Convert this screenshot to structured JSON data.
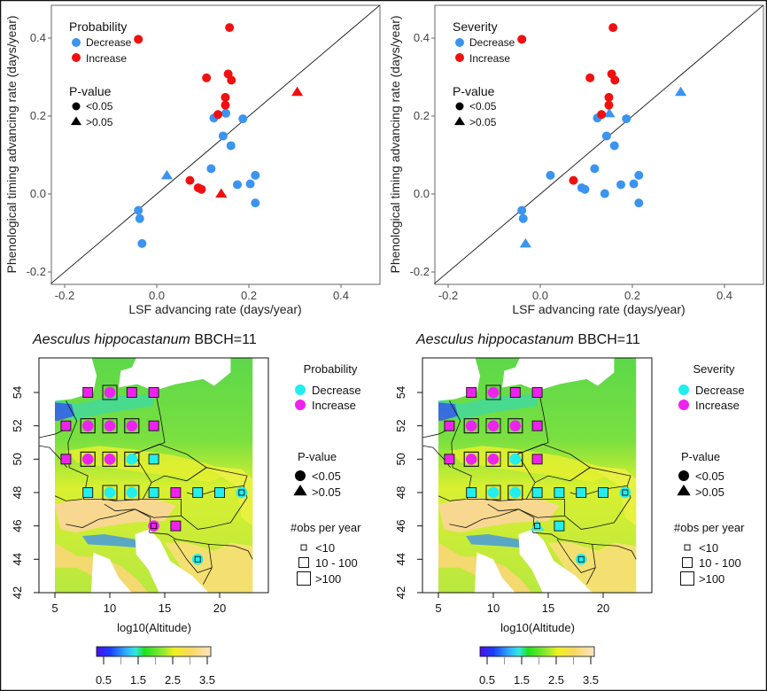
{
  "colors": {
    "decrease_scatter": "#3a94f0",
    "increase_scatter": "#f01010",
    "decrease_map": "#22eeee",
    "increase_map": "#ee22ee"
  },
  "chart_data": [
    {
      "type": "scatter",
      "panel": "top-left",
      "legend_title": "Probability",
      "legend": [
        "Decrease",
        "Increase"
      ],
      "pvalue_title": "P-value",
      "pvalue_legend": [
        "<0.05",
        ">0.05"
      ],
      "xlabel": "LSF advancing rate (days/year)",
      "ylabel": "Phenological timing advancing rate (days/year)",
      "xticks": [
        "-0.2",
        "0.0",
        "0.2",
        "0.4"
      ],
      "yticks": [
        "-0.2",
        "0.0",
        "0.2",
        "0.4"
      ],
      "xlim": [
        -0.23,
        0.485
      ],
      "ylim": [
        -0.232,
        0.484
      ],
      "reference_line": "y = x",
      "points": [
        {
          "x": -0.04,
          "y": -0.042,
          "class": "Decrease",
          "p": "<0.05"
        },
        {
          "x": -0.037,
          "y": -0.063,
          "class": "Decrease",
          "p": "<0.05"
        },
        {
          "x": -0.032,
          "y": -0.127,
          "class": "Decrease",
          "p": "<0.05"
        },
        {
          "x": 0.118,
          "y": 0.065,
          "class": "Decrease",
          "p": "<0.05"
        },
        {
          "x": 0.124,
          "y": 0.195,
          "class": "Decrease",
          "p": "<0.05"
        },
        {
          "x": 0.15,
          "y": 0.207,
          "class": "Decrease",
          "p": "<0.05"
        },
        {
          "x": 0.144,
          "y": 0.149,
          "class": "Decrease",
          "p": "<0.05"
        },
        {
          "x": 0.161,
          "y": 0.124,
          "class": "Decrease",
          "p": "<0.05"
        },
        {
          "x": 0.187,
          "y": 0.193,
          "class": "Decrease",
          "p": "<0.05"
        },
        {
          "x": 0.175,
          "y": 0.024,
          "class": "Decrease",
          "p": "<0.05"
        },
        {
          "x": 0.203,
          "y": 0.026,
          "class": "Decrease",
          "p": "<0.05"
        },
        {
          "x": 0.214,
          "y": 0.048,
          "class": "Decrease",
          "p": "<0.05"
        },
        {
          "x": 0.214,
          "y": -0.023,
          "class": "Decrease",
          "p": "<0.05"
        },
        {
          "x": 0.022,
          "y": 0.048,
          "class": "Decrease",
          "p": ">0.05"
        },
        {
          "x": -0.04,
          "y": 0.397,
          "class": "Increase",
          "p": "<0.05"
        },
        {
          "x": 0.158,
          "y": 0.427,
          "class": "Increase",
          "p": "<0.05"
        },
        {
          "x": 0.108,
          "y": 0.298,
          "class": "Increase",
          "p": "<0.05"
        },
        {
          "x": 0.155,
          "y": 0.308,
          "class": "Increase",
          "p": "<0.05"
        },
        {
          "x": 0.162,
          "y": 0.292,
          "class": "Increase",
          "p": "<0.05"
        },
        {
          "x": 0.149,
          "y": 0.248,
          "class": "Increase",
          "p": "<0.05"
        },
        {
          "x": 0.149,
          "y": 0.228,
          "class": "Increase",
          "p": "<0.05"
        },
        {
          "x": 0.133,
          "y": 0.204,
          "class": "Increase",
          "p": "<0.05"
        },
        {
          "x": 0.072,
          "y": 0.035,
          "class": "Increase",
          "p": "<0.05"
        },
        {
          "x": 0.09,
          "y": 0.016,
          "class": "Increase",
          "p": "<0.05"
        },
        {
          "x": 0.097,
          "y": 0.012,
          "class": "Increase",
          "p": "<0.05"
        },
        {
          "x": 0.305,
          "y": 0.262,
          "class": "Increase",
          "p": ">0.05"
        },
        {
          "x": 0.14,
          "y": 0.001,
          "class": "Increase",
          "p": ">0.05"
        }
      ]
    },
    {
      "type": "scatter",
      "panel": "top-right",
      "legend_title": "Severity",
      "legend": [
        "Decrease",
        "Increase"
      ],
      "pvalue_title": "P-value",
      "pvalue_legend": [
        "<0.05",
        ">0.05"
      ],
      "xlabel": "LSF advancing rate (days/year)",
      "ylabel": "Phenological timing advancing rate (days/year)",
      "xticks": [
        "-0.2",
        "0.0",
        "0.2",
        "0.4"
      ],
      "yticks": [
        "-0.2",
        "0.0",
        "0.2",
        "0.4"
      ],
      "xlim": [
        -0.23,
        0.485
      ],
      "ylim": [
        -0.232,
        0.484
      ],
      "reference_line": "y = x",
      "points": [
        {
          "x": -0.04,
          "y": -0.042,
          "class": "Decrease",
          "p": "<0.05"
        },
        {
          "x": -0.037,
          "y": -0.063,
          "class": "Decrease",
          "p": "<0.05"
        },
        {
          "x": -0.032,
          "y": -0.127,
          "class": "Decrease",
          "p": ">0.05"
        },
        {
          "x": 0.022,
          "y": 0.048,
          "class": "Decrease",
          "p": "<0.05"
        },
        {
          "x": 0.09,
          "y": 0.016,
          "class": "Decrease",
          "p": "<0.05"
        },
        {
          "x": 0.097,
          "y": 0.012,
          "class": "Decrease",
          "p": "<0.05"
        },
        {
          "x": 0.14,
          "y": 0.001,
          "class": "Decrease",
          "p": "<0.05"
        },
        {
          "x": 0.118,
          "y": 0.065,
          "class": "Decrease",
          "p": "<0.05"
        },
        {
          "x": 0.124,
          "y": 0.195,
          "class": "Decrease",
          "p": "<0.05"
        },
        {
          "x": 0.15,
          "y": 0.207,
          "class": "Decrease",
          "p": ">0.05"
        },
        {
          "x": 0.144,
          "y": 0.149,
          "class": "Decrease",
          "p": "<0.05"
        },
        {
          "x": 0.161,
          "y": 0.124,
          "class": "Decrease",
          "p": "<0.05"
        },
        {
          "x": 0.187,
          "y": 0.193,
          "class": "Decrease",
          "p": "<0.05"
        },
        {
          "x": 0.175,
          "y": 0.024,
          "class": "Decrease",
          "p": "<0.05"
        },
        {
          "x": 0.203,
          "y": 0.026,
          "class": "Decrease",
          "p": "<0.05"
        },
        {
          "x": 0.214,
          "y": 0.048,
          "class": "Decrease",
          "p": "<0.05"
        },
        {
          "x": 0.214,
          "y": -0.023,
          "class": "Decrease",
          "p": "<0.05"
        },
        {
          "x": 0.305,
          "y": 0.262,
          "class": "Decrease",
          "p": ">0.05"
        },
        {
          "x": -0.04,
          "y": 0.397,
          "class": "Increase",
          "p": "<0.05"
        },
        {
          "x": 0.158,
          "y": 0.427,
          "class": "Increase",
          "p": "<0.05"
        },
        {
          "x": 0.108,
          "y": 0.298,
          "class": "Increase",
          "p": "<0.05"
        },
        {
          "x": 0.155,
          "y": 0.308,
          "class": "Increase",
          "p": "<0.05"
        },
        {
          "x": 0.162,
          "y": 0.292,
          "class": "Increase",
          "p": "<0.05"
        },
        {
          "x": 0.149,
          "y": 0.248,
          "class": "Increase",
          "p": "<0.05"
        },
        {
          "x": 0.149,
          "y": 0.228,
          "class": "Increase",
          "p": "<0.05"
        },
        {
          "x": 0.133,
          "y": 0.204,
          "class": "Increase",
          "p": "<0.05"
        },
        {
          "x": 0.072,
          "y": 0.035,
          "class": "Increase",
          "p": "<0.05"
        }
      ]
    },
    {
      "type": "map",
      "panel": "bottom-left",
      "title_italic": "Aesculus hippocastanum",
      "title_rest": " BBCH=11",
      "legend_title": "Probability",
      "legend": [
        "Decrease",
        "Increase"
      ],
      "pvalue_title": "P-value",
      "pvalue_legend": [
        "<0.05",
        ">0.05"
      ],
      "obs_title": "#obs per year",
      "obs_legend": [
        "<10",
        "10 - 100",
        ">100"
      ],
      "xticks": [
        "5",
        "10",
        "15",
        "20"
      ],
      "yticks": [
        "42",
        "44",
        "46",
        "48",
        "50",
        "52",
        "54"
      ],
      "xlabel": "log10(Altitude)",
      "colorbar_ticks": [
        "0.5",
        "1.5",
        "2.5",
        "3.5"
      ],
      "sites": [
        {
          "lon": 8,
          "lat": 54,
          "class": "Increase",
          "obs": "10 - 100",
          "mark": "square"
        },
        {
          "lon": 10,
          "lat": 54,
          "class": "Increase",
          "obs": ">100",
          "mark": "circle"
        },
        {
          "lon": 12,
          "lat": 54,
          "class": "Increase",
          "obs": "10 - 100",
          "mark": "square"
        },
        {
          "lon": 14,
          "lat": 54,
          "class": "Increase",
          "obs": "10 - 100",
          "mark": "square"
        },
        {
          "lon": 6,
          "lat": 52,
          "class": "Increase",
          "obs": "10 - 100",
          "mark": "square"
        },
        {
          "lon": 8,
          "lat": 52,
          "class": "Increase",
          "obs": ">100",
          "mark": "circle"
        },
        {
          "lon": 10,
          "lat": 52,
          "class": "Increase",
          "obs": ">100",
          "mark": "circle"
        },
        {
          "lon": 12,
          "lat": 52,
          "class": "Increase",
          "obs": ">100",
          "mark": "circle"
        },
        {
          "lon": 14,
          "lat": 52,
          "class": "Increase",
          "obs": "10 - 100",
          "mark": "square"
        },
        {
          "lon": 6,
          "lat": 50,
          "class": "Increase",
          "obs": "10 - 100",
          "mark": "square"
        },
        {
          "lon": 8,
          "lat": 50,
          "class": "Increase",
          "obs": ">100",
          "mark": "circle"
        },
        {
          "lon": 10,
          "lat": 50,
          "class": "Increase",
          "obs": ">100",
          "mark": "circle"
        },
        {
          "lon": 12,
          "lat": 50,
          "class": "Decrease",
          "obs": ">100",
          "mark": "circle"
        },
        {
          "lon": 14,
          "lat": 50,
          "class": "Decrease",
          "obs": "10 - 100",
          "mark": "square"
        },
        {
          "lon": 8,
          "lat": 48,
          "class": "Decrease",
          "obs": "10 - 100",
          "mark": "square"
        },
        {
          "lon": 10,
          "lat": 48,
          "class": "Decrease",
          "obs": ">100",
          "mark": "circle"
        },
        {
          "lon": 12,
          "lat": 48,
          "class": "Decrease",
          "obs": ">100",
          "mark": "circle"
        },
        {
          "lon": 14,
          "lat": 48,
          "class": "Decrease",
          "obs": "10 - 100",
          "mark": "square"
        },
        {
          "lon": 16,
          "lat": 48,
          "class": "Increase",
          "obs": "10 - 100",
          "mark": "square"
        },
        {
          "lon": 18,
          "lat": 48,
          "class": "Decrease",
          "obs": "10 - 100",
          "mark": "square"
        },
        {
          "lon": 20,
          "lat": 48,
          "class": "Decrease",
          "obs": "10 - 100",
          "mark": "square"
        },
        {
          "lon": 22,
          "lat": 48,
          "class": "Decrease",
          "obs": "<10",
          "mark": "circle"
        },
        {
          "lon": 14,
          "lat": 46,
          "class": "Increase",
          "obs": "<10",
          "mark": "circle"
        },
        {
          "lon": 16,
          "lat": 46,
          "class": "Increase",
          "obs": "10 - 100",
          "mark": "square"
        },
        {
          "lon": 18,
          "lat": 44,
          "class": "Decrease",
          "obs": "<10",
          "mark": "circle"
        }
      ]
    },
    {
      "type": "map",
      "panel": "bottom-right",
      "title_italic": "Aesculus hippocastanum",
      "title_rest": " BBCH=11",
      "legend_title": "Severity",
      "legend": [
        "Decrease",
        "Increase"
      ],
      "pvalue_title": "P-value",
      "pvalue_legend": [
        "<0.05",
        ">0.05"
      ],
      "obs_title": "#obs per year",
      "obs_legend": [
        "<10",
        "10 - 100",
        ">100"
      ],
      "xticks": [
        "5",
        "10",
        "15",
        "20"
      ],
      "yticks": [
        "42",
        "44",
        "46",
        "48",
        "50",
        "52",
        "54"
      ],
      "xlabel": "log10(Altitude)",
      "colorbar_ticks": [
        "0.5",
        "1.5",
        "2.5",
        "3.5"
      ],
      "sites": [
        {
          "lon": 8,
          "lat": 54,
          "class": "Increase",
          "obs": "10 - 100",
          "mark": "square"
        },
        {
          "lon": 10,
          "lat": 54,
          "class": "Increase",
          "obs": ">100",
          "mark": "circle"
        },
        {
          "lon": 12,
          "lat": 54,
          "class": "Increase",
          "obs": "10 - 100",
          "mark": "square"
        },
        {
          "lon": 14,
          "lat": 54,
          "class": "Increase",
          "obs": "10 - 100",
          "mark": "square"
        },
        {
          "lon": 6,
          "lat": 52,
          "class": "Increase",
          "obs": "10 - 100",
          "mark": "square"
        },
        {
          "lon": 8,
          "lat": 52,
          "class": "Increase",
          "obs": ">100",
          "mark": "circle"
        },
        {
          "lon": 10,
          "lat": 52,
          "class": "Increase",
          "obs": ">100",
          "mark": "circle"
        },
        {
          "lon": 12,
          "lat": 52,
          "class": "Increase",
          "obs": ">100",
          "mark": "circle"
        },
        {
          "lon": 14,
          "lat": 52,
          "class": "Increase",
          "obs": "10 - 100",
          "mark": "square"
        },
        {
          "lon": 6,
          "lat": 50,
          "class": "Increase",
          "obs": "10 - 100",
          "mark": "square"
        },
        {
          "lon": 8,
          "lat": 50,
          "class": "Increase",
          "obs": ">100",
          "mark": "circle"
        },
        {
          "lon": 10,
          "lat": 50,
          "class": "Increase",
          "obs": ">100",
          "mark": "circle"
        },
        {
          "lon": 12,
          "lat": 50,
          "class": "Decrease",
          "obs": ">100",
          "mark": "circle"
        },
        {
          "lon": 14,
          "lat": 50,
          "class": "Increase",
          "obs": "10 - 100",
          "mark": "square"
        },
        {
          "lon": 8,
          "lat": 48,
          "class": "Decrease",
          "obs": "10 - 100",
          "mark": "square"
        },
        {
          "lon": 10,
          "lat": 48,
          "class": "Decrease",
          "obs": ">100",
          "mark": "circle"
        },
        {
          "lon": 12,
          "lat": 48,
          "class": "Decrease",
          "obs": ">100",
          "mark": "circle"
        },
        {
          "lon": 14,
          "lat": 48,
          "class": "Decrease",
          "obs": "10 - 100",
          "mark": "square"
        },
        {
          "lon": 16,
          "lat": 48,
          "class": "Decrease",
          "obs": "10 - 100",
          "mark": "square"
        },
        {
          "lon": 18,
          "lat": 48,
          "class": "Decrease",
          "obs": "10 - 100",
          "mark": "square"
        },
        {
          "lon": 20,
          "lat": 48,
          "class": "Decrease",
          "obs": "10 - 100",
          "mark": "square"
        },
        {
          "lon": 22,
          "lat": 48,
          "class": "Decrease",
          "obs": "<10",
          "mark": "circle"
        },
        {
          "lon": 14,
          "lat": 46,
          "class": "Decrease",
          "obs": "<10",
          "mark": "triangle"
        },
        {
          "lon": 16,
          "lat": 46,
          "class": "Decrease",
          "obs": "10 - 100",
          "mark": "square"
        },
        {
          "lon": 18,
          "lat": 44,
          "class": "Decrease",
          "obs": "<10",
          "mark": "circle"
        }
      ]
    }
  ]
}
